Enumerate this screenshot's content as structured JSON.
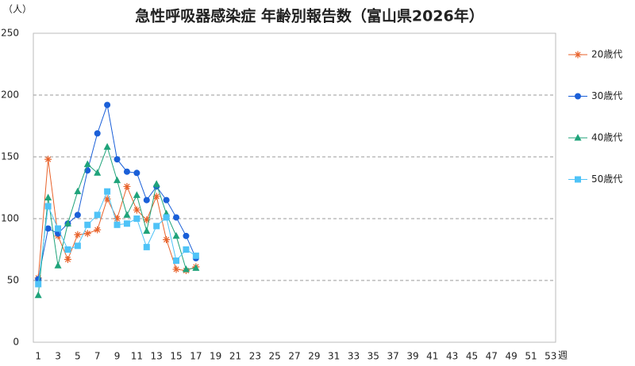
{
  "chart_data": {
    "type": "line",
    "title": "急性呼吸器感染症 年齢別報告数（富山県2026年）",
    "y_label": "（人）",
    "x_label": "週",
    "categories": [
      "1",
      null,
      "3",
      null,
      "5",
      null,
      "7",
      null,
      "9",
      null,
      "11",
      null,
      "13",
      null,
      "15",
      null,
      "17",
      null,
      "19",
      null,
      "21",
      null,
      "23",
      null,
      "25",
      null,
      "27",
      null,
      "29",
      null,
      "31",
      null,
      "33",
      null,
      "35",
      null,
      "37",
      null,
      "39",
      null,
      "41",
      null,
      "43",
      null,
      "45",
      null,
      "47",
      null,
      "49",
      null,
      "51",
      null,
      "53"
    ],
    "ylim": [
      0,
      250
    ],
    "yticks": [
      0,
      50,
      100,
      150,
      200,
      250
    ],
    "grid": true,
    "series": [
      {
        "name": "20歳代",
        "color": "#e8622a",
        "marker": "star",
        "values": [
          52,
          148,
          86,
          67,
          87,
          88,
          91,
          116,
          100,
          126,
          107,
          99,
          118,
          83,
          59,
          58,
          61,
          null,
          null,
          null,
          null,
          null,
          null,
          null,
          null,
          null,
          null,
          null,
          null,
          null,
          null,
          null,
          null,
          null,
          null,
          null,
          null,
          null,
          null,
          null,
          null,
          null,
          null,
          null,
          null,
          null,
          null,
          null,
          null,
          null,
          null,
          null,
          null
        ]
      },
      {
        "name": "30歳代",
        "color": "#1a5fd8",
        "marker": "circle",
        "values": [
          51,
          92,
          88,
          96,
          103,
          139,
          169,
          192,
          148,
          138,
          137,
          115,
          126,
          115,
          101,
          86,
          68,
          null,
          null,
          null,
          null,
          null,
          null,
          null,
          null,
          null,
          null,
          null,
          null,
          null,
          null,
          null,
          null,
          null,
          null,
          null,
          null,
          null,
          null,
          null,
          null,
          null,
          null,
          null,
          null,
          null,
          null,
          null,
          null,
          null,
          null,
          null,
          null
        ]
      },
      {
        "name": "40歳代",
        "color": "#1fa37a",
        "marker": "triangle",
        "values": [
          38,
          117,
          62,
          96,
          122,
          144,
          137,
          158,
          131,
          103,
          119,
          90,
          128,
          104,
          86,
          59,
          60,
          null,
          null,
          null,
          null,
          null,
          null,
          null,
          null,
          null,
          null,
          null,
          null,
          null,
          null,
          null,
          null,
          null,
          null,
          null,
          null,
          null,
          null,
          null,
          null,
          null,
          null,
          null,
          null,
          null,
          null,
          null,
          null,
          null,
          null,
          null,
          null
        ]
      },
      {
        "name": "50歳代",
        "color": "#4fc3f7",
        "marker": "square",
        "values": [
          47,
          110,
          92,
          75,
          78,
          95,
          103,
          122,
          95,
          96,
          100,
          77,
          94,
          101,
          66,
          75,
          70,
          null,
          null,
          null,
          null,
          null,
          null,
          null,
          null,
          null,
          null,
          null,
          null,
          null,
          null,
          null,
          null,
          null,
          null,
          null,
          null,
          null,
          null,
          null,
          null,
          null,
          null,
          null,
          null,
          null,
          null,
          null,
          null,
          null,
          null,
          null,
          null
        ]
      }
    ]
  }
}
